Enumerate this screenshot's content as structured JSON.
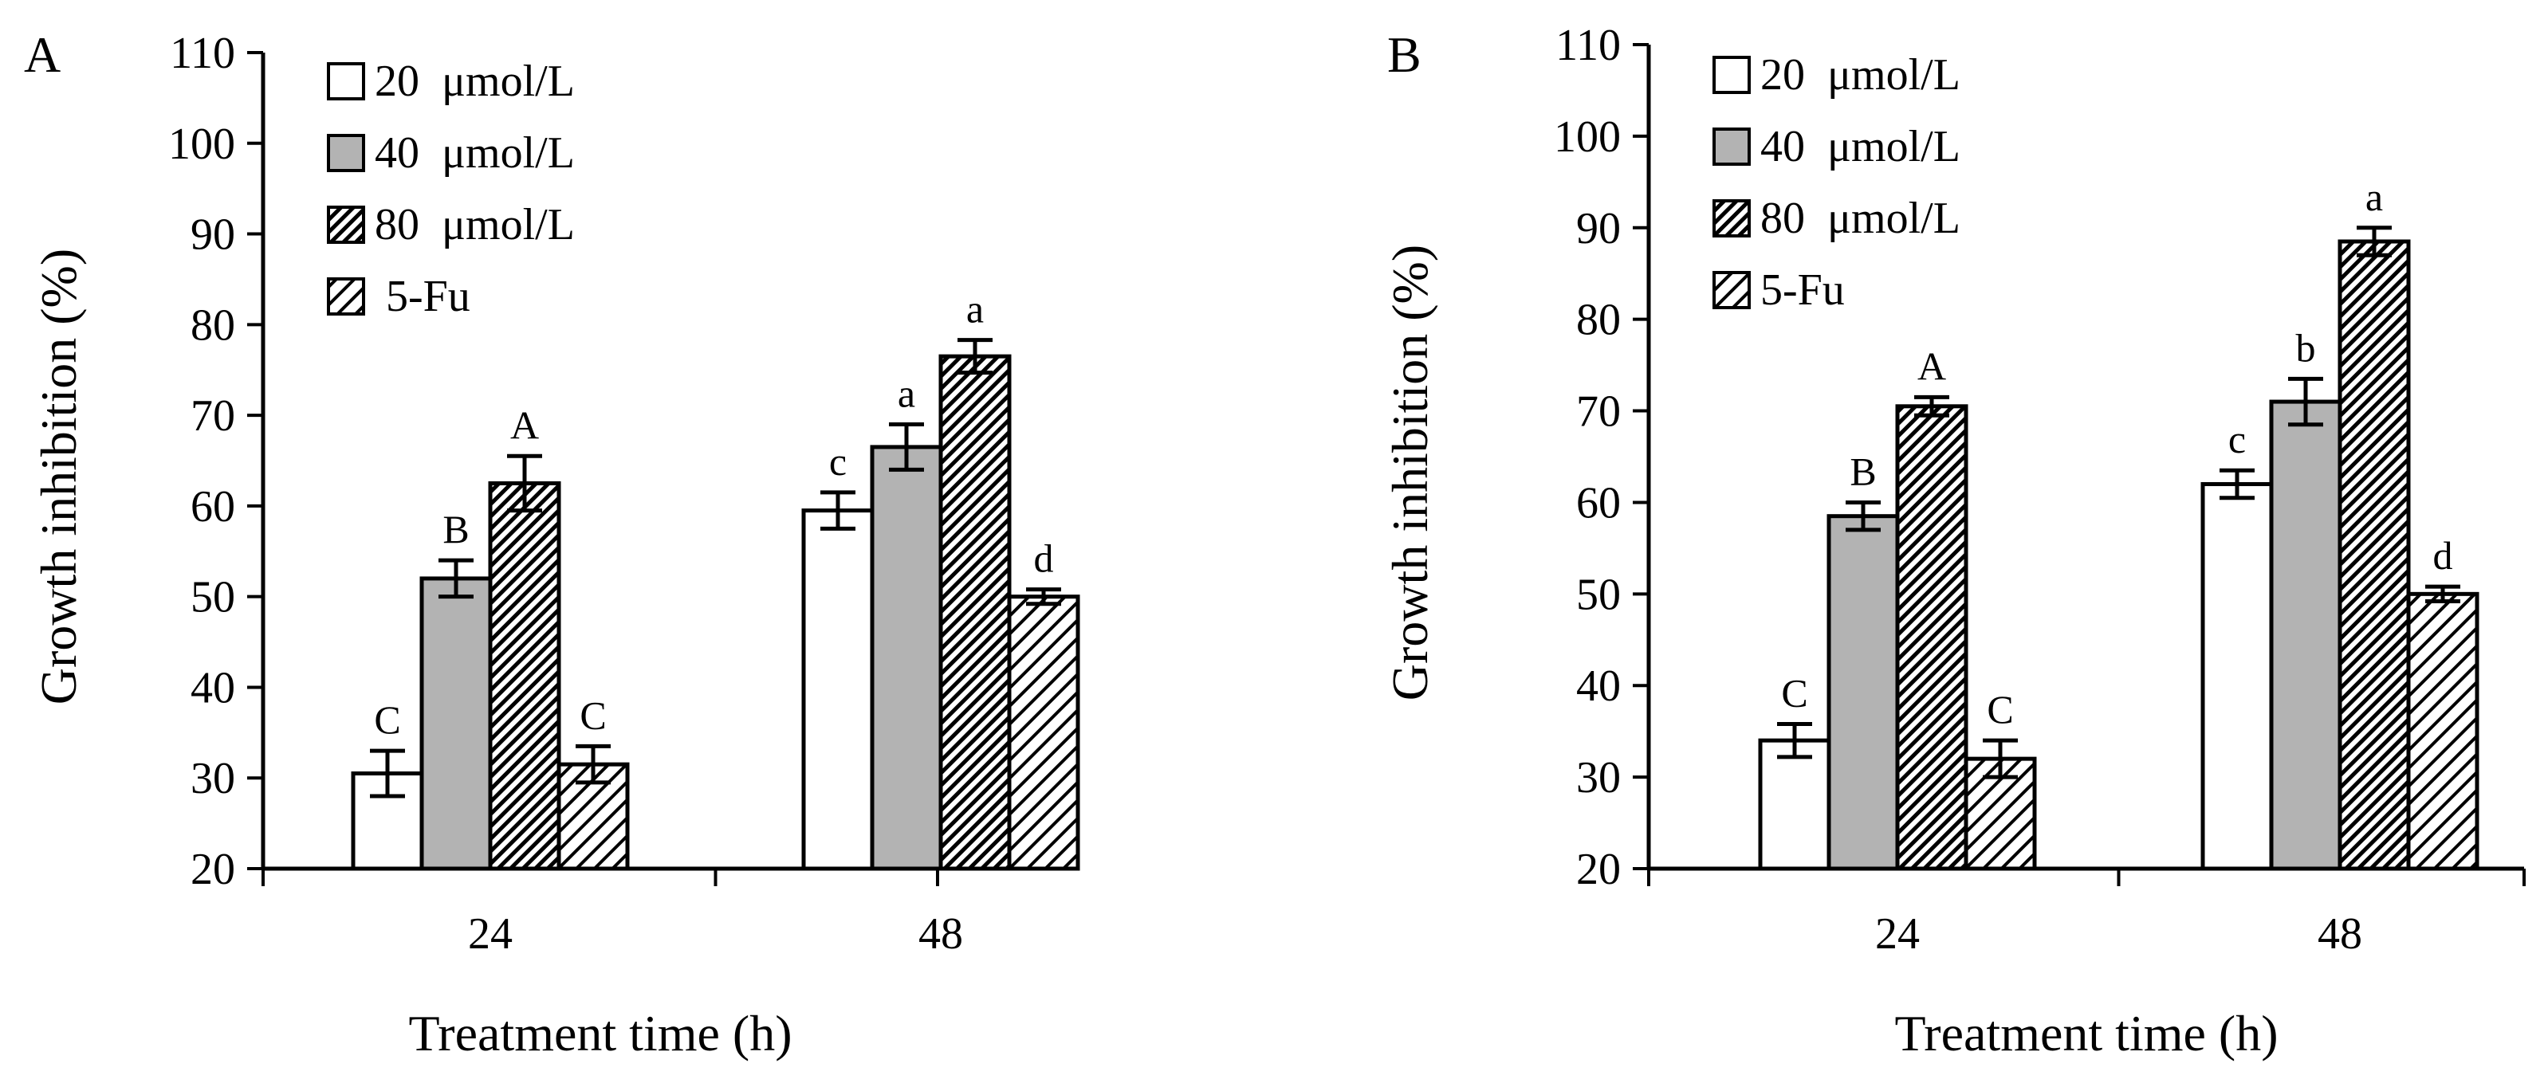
{
  "chart_data": [
    {
      "panel_label": "A",
      "type": "bar",
      "categories": [
        "24",
        "48"
      ],
      "xlabel": "Treatment time (h)",
      "ylabel": "Growth inhibition (%)",
      "ylim": [
        20,
        110
      ],
      "yticks": [
        20,
        30,
        40,
        50,
        60,
        70,
        80,
        90,
        100,
        110
      ],
      "grid": false,
      "legend_position": "top-left",
      "series": [
        {
          "name": "20  μmol/L",
          "pattern": "white",
          "values": [
            30.5,
            59.5
          ],
          "errors": [
            2.5,
            2.0
          ],
          "labels": [
            "C",
            "c"
          ]
        },
        {
          "name": "40  μmol/L",
          "pattern": "gray",
          "values": [
            52.0,
            66.5
          ],
          "errors": [
            2.0,
            2.5
          ],
          "labels": [
            "B",
            "a"
          ]
        },
        {
          "name": "80  μmol/L",
          "pattern": "dense-hatch",
          "values": [
            62.5,
            76.5
          ],
          "errors": [
            3.0,
            1.8
          ],
          "labels": [
            "A",
            "a"
          ]
        },
        {
          "name": " 5-Fu",
          "pattern": "hatch",
          "values": [
            31.5,
            50.0
          ],
          "errors": [
            2.0,
            0.8
          ],
          "labels": [
            "C",
            "d"
          ]
        }
      ]
    },
    {
      "panel_label": "B",
      "type": "bar",
      "categories": [
        "24",
        "48"
      ],
      "xlabel": "Treatment time (h)",
      "ylabel": "Growth inhibition (%)",
      "ylim": [
        20,
        110
      ],
      "yticks": [
        20,
        30,
        40,
        50,
        60,
        70,
        80,
        90,
        100,
        110
      ],
      "grid": false,
      "legend_position": "top-left",
      "series": [
        {
          "name": "20  μmol/L",
          "pattern": "white",
          "values": [
            34.0,
            62.0
          ],
          "errors": [
            1.8,
            1.5
          ],
          "labels": [
            "C",
            "c"
          ]
        },
        {
          "name": "40  μmol/L",
          "pattern": "gray",
          "values": [
            58.5,
            71.0
          ],
          "errors": [
            1.5,
            2.5
          ],
          "labels": [
            "B",
            "b"
          ]
        },
        {
          "name": "80  μmol/L",
          "pattern": "dense-hatch",
          "values": [
            70.5,
            88.5
          ],
          "errors": [
            1.0,
            1.5
          ],
          "labels": [
            "A",
            "a"
          ]
        },
        {
          "name": "5-Fu",
          "pattern": "hatch",
          "values": [
            32.0,
            50.0
          ],
          "errors": [
            2.0,
            0.8
          ],
          "labels": [
            "C",
            "d"
          ]
        }
      ]
    }
  ]
}
